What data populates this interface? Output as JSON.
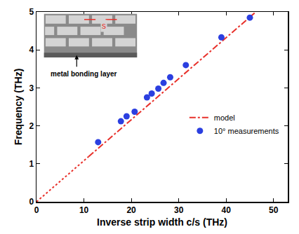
{
  "chart_data": {
    "type": "scatter",
    "x_label": "Inverse strip width c/s (THz)",
    "y_label": "Frequency (THz)",
    "xlim": [
      0,
      53
    ],
    "xticks": [
      0,
      10,
      20,
      30,
      40,
      50
    ],
    "ylim": [
      0,
      5
    ],
    "yticks": [
      0,
      1,
      2,
      3,
      4,
      5
    ],
    "grid": false,
    "legend": "lower right",
    "series": [
      {
        "name": "model",
        "type": "line",
        "color": "#e8302a",
        "line_style": "dashdot",
        "x": [
          11,
          46
        ],
        "values": [
          1.19,
          4.97
        ]
      },
      {
        "type": "line",
        "color": "#e8302a",
        "line_style": "dot",
        "x": [
          0,
          11
        ],
        "values": [
          0,
          1.19
        ]
      },
      {
        "name": "10° measurements",
        "type": "scatter",
        "color": "#2b3fe0",
        "marker": "circle",
        "x": [
          13,
          17.8,
          19,
          20.7,
          23.3,
          24.3,
          25.7,
          26.8,
          28.2,
          31.5,
          39,
          45
        ],
        "values": [
          1.57,
          2.12,
          2.25,
          2.37,
          2.75,
          2.85,
          2.98,
          3.13,
          3.28,
          3.6,
          4.33,
          4.85
        ]
      }
    ],
    "annotations": [
      {
        "text": "s",
        "color": "#e8302a"
      },
      {
        "text": "metal bonding layer",
        "color": "#000000"
      }
    ]
  }
}
